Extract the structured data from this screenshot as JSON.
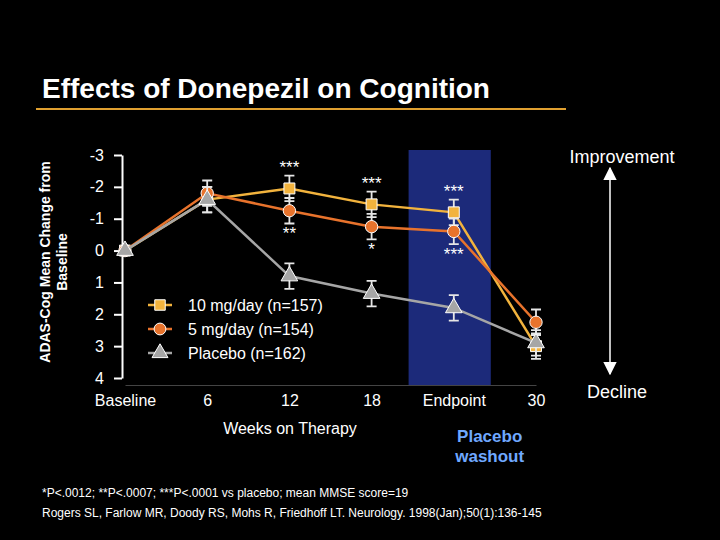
{
  "chart_data": {
    "type": "line",
    "title": "Effects of Donepezil on Cognition",
    "y_label": "ADAS-Cog Mean Change from Baseline",
    "x_label": "Weeks on Therapy",
    "categories": [
      "Baseline",
      "6",
      "12",
      "18",
      "Endpoint",
      "30"
    ],
    "ylim": [
      4,
      -3
    ],
    "yticks": [
      -3,
      -2,
      -1,
      0,
      1,
      2,
      3,
      4
    ],
    "grid": false,
    "legend": "bottom",
    "series": [
      {
        "name": "10 mg/day (n=157)",
        "color": "#f2b33d",
        "marker": "square",
        "line_style": "solid",
        "values": [
          0,
          -1.6,
          -1.95,
          -1.45,
          -1.2,
          3.0
        ],
        "errors": [
          0,
          0.4,
          0.4,
          0.4,
          0.4,
          0.4
        ],
        "significance": [
          null,
          null,
          "***",
          "***",
          "***",
          null
        ]
      },
      {
        "name": "5 mg/day (n=154)",
        "color": "#e8732c",
        "marker": "circle",
        "line_style": "solid",
        "values": [
          0,
          -1.8,
          -1.25,
          -0.75,
          -0.6,
          2.25
        ],
        "errors": [
          0,
          0.4,
          0.4,
          0.4,
          0.4,
          0.4
        ],
        "significance": [
          null,
          null,
          "**",
          "*",
          "***",
          null
        ]
      },
      {
        "name": "Placebo (n=162)",
        "color": "#a6a6a6",
        "marker": "triangle",
        "line_style": "solid",
        "values": [
          0,
          -1.6,
          0.8,
          1.35,
          1.8,
          2.9
        ],
        "errors": [
          0,
          0.4,
          0.4,
          0.4,
          0.4,
          0.4
        ]
      }
    ],
    "washout": {
      "label": "Placebo washout",
      "category": "Endpoint"
    },
    "direction_labels": {
      "up": "Improvement",
      "down": "Decline"
    },
    "footnotes": [
      "*P<.0012; **P<.0007; ***P<.0001 vs placebo; mean MMSE score=19",
      "Rogers SL, Farlow MR, Doody RS, Mohs R, Friedhoff LT. Neurology. 1998(Jan);50(1):136-145"
    ]
  }
}
